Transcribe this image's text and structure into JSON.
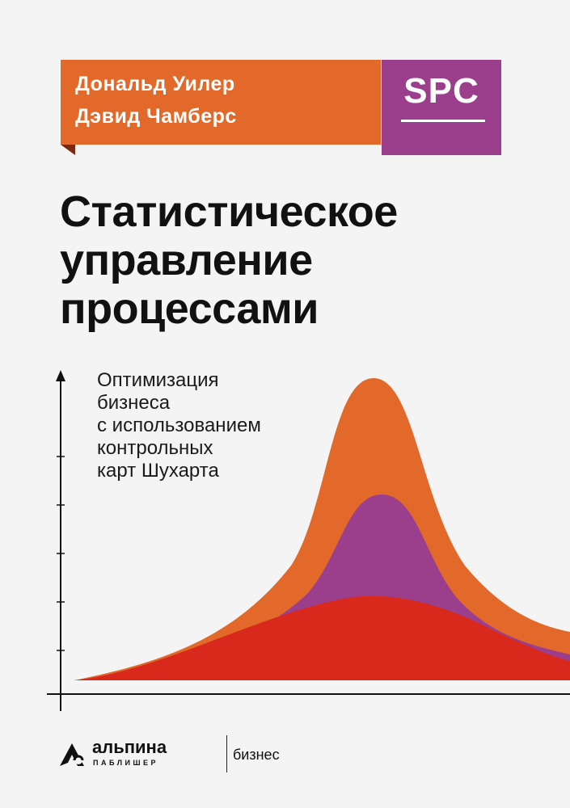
{
  "authors": [
    "Дональд Уилер",
    "Дэвид Чамберс"
  ],
  "series": "SPC",
  "title_lines": [
    "Статистическое",
    "управление",
    "процессами"
  ],
  "subtitle_lines": [
    "Оптимизация",
    "бизнеса",
    "с использованием",
    "контрольных",
    "карт Шухарта"
  ],
  "publisher": {
    "name": "альпина",
    "sub": "ПАБЛИШЕР",
    "imprint": "бизнес"
  },
  "colors": {
    "background": "#f4f4f4",
    "orange": "#e2692a",
    "purple": "#9b3f8c",
    "red": "#d9291c",
    "text": "#111111"
  }
}
